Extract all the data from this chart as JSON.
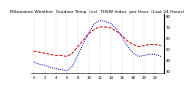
{
  "title": "Milwaukee Weather  Outdoor Temp  (vs)  THSW Index  per Hour  (Last 24 Hours)",
  "temp_color": "#cc0000",
  "thsw_color": "#0000cc",
  "background_color": "#ffffff",
  "plot_bg_color": "#ffffff",
  "hours": [
    0,
    1,
    2,
    3,
    4,
    5,
    6,
    7,
    8,
    9,
    10,
    11,
    12,
    13,
    14,
    15,
    16,
    17,
    18,
    19,
    20,
    21,
    22,
    23
  ],
  "temp_values": [
    48,
    47,
    46,
    45,
    44,
    44,
    43,
    46,
    52,
    58,
    64,
    68,
    70,
    70,
    69,
    66,
    62,
    57,
    54,
    52,
    53,
    54,
    54,
    53
  ],
  "thsw_values": [
    38,
    36,
    35,
    33,
    32,
    31,
    30,
    34,
    44,
    55,
    65,
    73,
    76,
    75,
    73,
    68,
    61,
    52,
    46,
    43,
    44,
    45,
    45,
    43
  ],
  "ylim_min": 28,
  "ylim_max": 82,
  "ytick_positions": [
    30,
    40,
    50,
    60,
    70,
    80
  ],
  "ytick_labels": [
    "30",
    "40",
    "50",
    "60",
    "70",
    "80"
  ],
  "xtick_positions": [
    0,
    2,
    4,
    6,
    8,
    10,
    12,
    14,
    16,
    18,
    20,
    22
  ],
  "xtick_labels": [
    "0",
    "2",
    "4",
    "6",
    "8",
    "10",
    "12",
    "14",
    "16",
    "18",
    "20",
    "22"
  ],
  "grid_positions": [
    0,
    2,
    4,
    6,
    8,
    10,
    12,
    14,
    16,
    18,
    20,
    22
  ],
  "title_fontsize": 3.2,
  "line_width": 0.7,
  "grid_color": "#bbbbbb",
  "tick_fontsize": 2.8,
  "right_border_color": "#000000"
}
